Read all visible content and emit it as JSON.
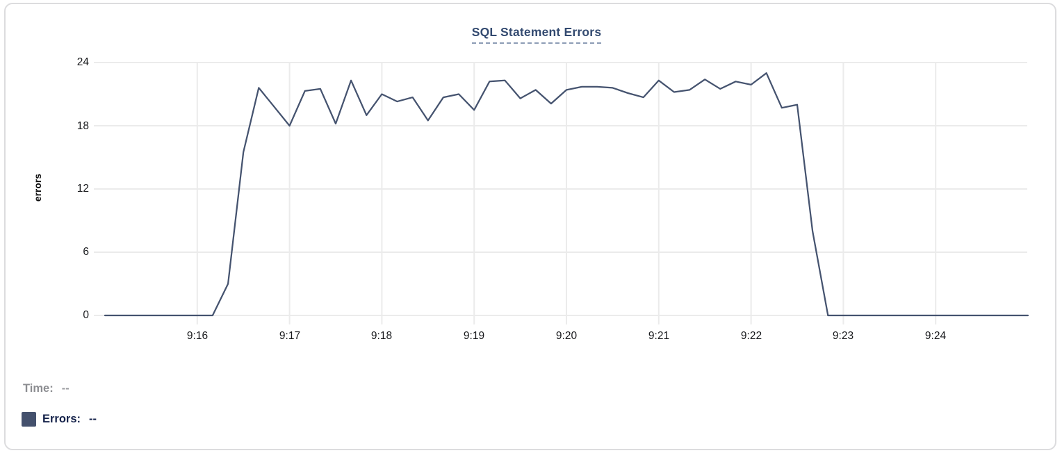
{
  "chart_data": {
    "type": "line",
    "title": "SQL Statement Errors",
    "ylabel": "errors",
    "xlabel": "",
    "ylim": [
      0,
      24
    ],
    "y_ticks": [
      24,
      18,
      12,
      6,
      0
    ],
    "x_tick_labels": [
      "9:16",
      "9:17",
      "9:18",
      "9:19",
      "9:20",
      "9:21",
      "9:22",
      "9:23",
      "9:24"
    ],
    "grid": true,
    "legend_position": "none",
    "line_color": "#45536F",
    "grid_color": "#ebebeb",
    "x": [
      "9:15:00",
      "9:15:10",
      "9:15:20",
      "9:15:30",
      "9:15:40",
      "9:15:50",
      "9:16:00",
      "9:16:10",
      "9:16:20",
      "9:16:30",
      "9:16:40",
      "9:16:50",
      "9:17:00",
      "9:17:10",
      "9:17:20",
      "9:17:30",
      "9:17:40",
      "9:17:50",
      "9:18:00",
      "9:18:10",
      "9:18:20",
      "9:18:30",
      "9:18:40",
      "9:18:50",
      "9:19:00",
      "9:19:10",
      "9:19:20",
      "9:19:30",
      "9:19:40",
      "9:19:50",
      "9:20:00",
      "9:20:10",
      "9:20:20",
      "9:20:30",
      "9:20:40",
      "9:20:50",
      "9:21:00",
      "9:21:10",
      "9:21:20",
      "9:21:30",
      "9:21:40",
      "9:21:50",
      "9:22:00",
      "9:22:10",
      "9:22:20",
      "9:22:30",
      "9:22:40",
      "9:22:50",
      "9:23:00",
      "9:23:10",
      "9:23:20",
      "9:23:30",
      "9:23:40",
      "9:23:50",
      "9:24:00",
      "9:24:10",
      "9:24:20",
      "9:24:30",
      "9:24:40",
      "9:24:50",
      "9:25:00"
    ],
    "values": [
      0,
      0,
      0,
      0,
      0,
      0,
      0,
      0,
      3,
      15.5,
      21.6,
      19.8,
      18,
      21.3,
      21.5,
      18.2,
      22.3,
      19,
      21,
      20.3,
      20.7,
      18.5,
      20.7,
      21,
      19.5,
      22.2,
      22.3,
      20.6,
      21.4,
      20.1,
      21.4,
      21.7,
      21.7,
      21.6,
      21.1,
      20.7,
      22.3,
      21.2,
      21.4,
      22.4,
      21.5,
      22.2,
      21.9,
      23,
      19.7,
      20,
      8,
      0,
      0,
      0,
      0,
      0,
      0,
      0,
      0,
      0,
      0,
      0,
      0,
      0,
      0
    ]
  },
  "tooltip": {
    "time_label": "Time:",
    "time_value": "--",
    "errors_label": "Errors:",
    "errors_value": "--",
    "swatch_color": "#44516D"
  }
}
